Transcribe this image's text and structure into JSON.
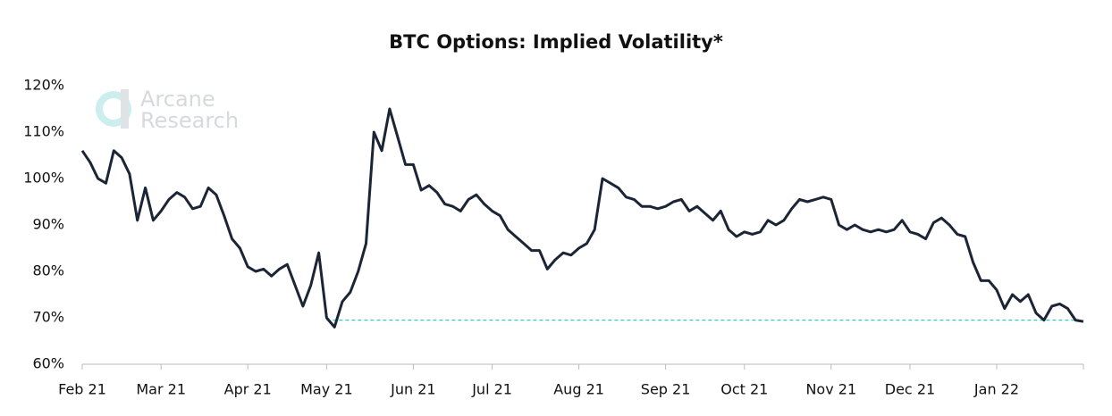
{
  "chart_data": {
    "type": "line",
    "title": "BTC Options: Implied Volatility*",
    "watermark": [
      "Arcane",
      "Research"
    ],
    "categories": [
      "Feb 21",
      null,
      null,
      null,
      null,
      null,
      null,
      null,
      null,
      null,
      "Mar 21",
      null,
      null,
      null,
      null,
      null,
      null,
      null,
      null,
      null,
      null,
      "Apr 21",
      null,
      null,
      null,
      null,
      null,
      null,
      null,
      null,
      null,
      "May 21",
      null,
      null,
      null,
      null,
      null,
      null,
      null,
      null,
      null,
      null,
      "Jun 21",
      null,
      null,
      null,
      null,
      null,
      null,
      null,
      null,
      null,
      "Jul 21",
      null,
      null,
      null,
      null,
      null,
      null,
      null,
      null,
      null,
      null,
      "Aug 21",
      null,
      null,
      null,
      null,
      null,
      null,
      null,
      null,
      null,
      null,
      "Sep 21",
      null,
      null,
      null,
      null,
      null,
      null,
      null,
      null,
      null,
      "Oct 21",
      null,
      null,
      null,
      null,
      null,
      null,
      null,
      null,
      null,
      null,
      "Nov 21",
      null,
      null,
      null,
      null,
      null,
      null,
      null,
      null,
      null,
      "Dec 21",
      null,
      null,
      null,
      null,
      null,
      null,
      null,
      null,
      null,
      null,
      "Jan 22",
      null,
      null,
      null,
      null,
      null,
      null,
      null,
      null,
      null,
      null,
      null
    ],
    "series": [
      {
        "name": "Implied Volatility",
        "color": "#1b2536",
        "values": [
          106,
          103.5,
          100,
          99,
          106,
          104.5,
          101,
          91,
          98,
          91,
          93,
          95.5,
          97,
          96,
          93.5,
          94,
          98,
          96.5,
          92,
          87,
          85,
          81,
          80,
          80.5,
          79,
          80.5,
          81.5,
          77,
          72.5,
          77,
          84,
          70,
          68,
          73.5,
          75.5,
          80,
          86,
          110,
          106,
          115,
          109,
          103,
          103,
          97.5,
          98.5,
          97,
          94.5,
          94,
          93,
          95.5,
          96.5,
          94.5,
          93,
          92,
          89,
          87.5,
          86,
          84.5,
          84.5,
          80.5,
          82.5,
          84,
          83.5,
          85,
          86,
          89,
          100,
          99,
          98,
          96,
          95.5,
          94,
          94,
          93.5,
          94,
          95,
          95.5,
          93,
          94,
          92.5,
          91,
          93,
          89,
          87.5,
          88.5,
          88,
          88.5,
          91,
          90,
          91,
          93.5,
          95.5,
          95,
          95.5,
          96,
          95.5,
          90,
          89,
          90,
          89,
          88.5,
          89,
          88.5,
          89,
          91,
          88.5,
          88,
          87,
          90.5,
          91.5,
          90,
          88,
          87.5,
          82,
          78,
          78,
          76,
          72,
          75,
          73.5,
          75,
          71,
          69.5,
          72.5,
          73,
          72,
          69.5,
          69.2
        ]
      }
    ],
    "ylim": [
      60,
      120
    ],
    "yticks": [
      {
        "value": 60,
        "label": "60%"
      },
      {
        "value": 70,
        "label": "70%"
      },
      {
        "value": 80,
        "label": "80%"
      },
      {
        "value": 90,
        "label": "90%"
      },
      {
        "value": 100,
        "label": "100%"
      },
      {
        "value": 110,
        "label": "110%"
      },
      {
        "value": 120,
        "label": "120%"
      }
    ],
    "reference_line": {
      "value": 69.5,
      "color": "#3cc6c6",
      "start": "May 21"
    }
  }
}
